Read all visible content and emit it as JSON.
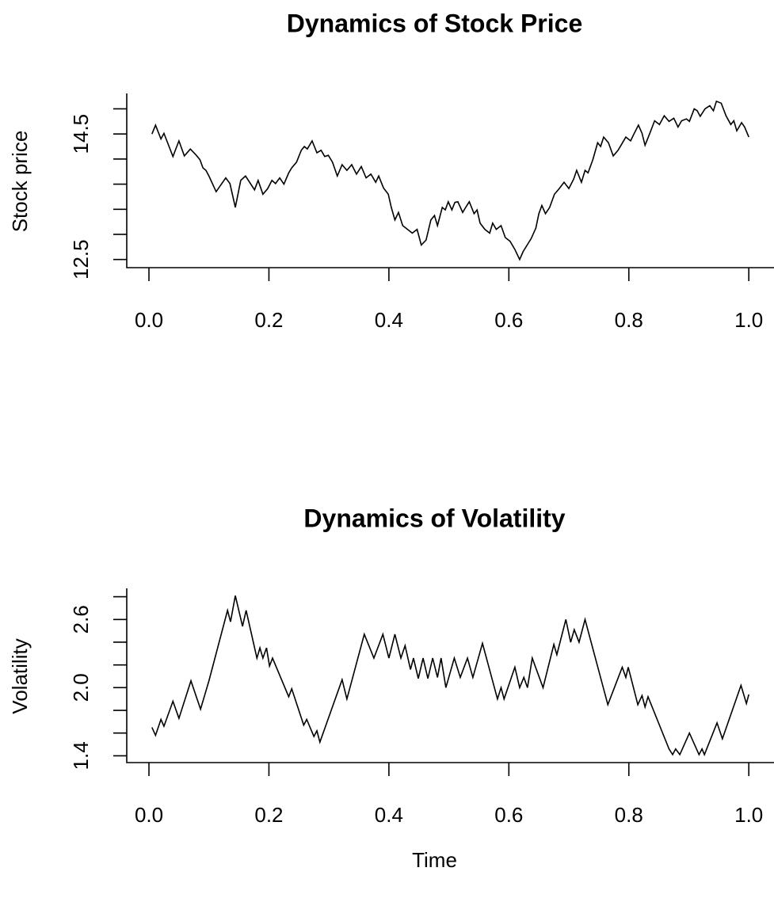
{
  "chart_data": [
    {
      "type": "line",
      "title": "Dynamics of Stock Price",
      "ylabel": "Stock price",
      "color": "#000000",
      "x": [
        0.005,
        0.011,
        0.02,
        0.025,
        0.04,
        0.05,
        0.059,
        0.069,
        0.078,
        0.085,
        0.09,
        0.095,
        0.1,
        0.112,
        0.128,
        0.135,
        0.144,
        0.153,
        0.161,
        0.176,
        0.182,
        0.19,
        0.198,
        0.205,
        0.211,
        0.218,
        0.225,
        0.233,
        0.238,
        0.246,
        0.254,
        0.259,
        0.264,
        0.272,
        0.28,
        0.287,
        0.293,
        0.299,
        0.306,
        0.314,
        0.322,
        0.33,
        0.338,
        0.346,
        0.354,
        0.362,
        0.37,
        0.378,
        0.383,
        0.391,
        0.399,
        0.404,
        0.41,
        0.416,
        0.423,
        0.431,
        0.439,
        0.447,
        0.454,
        0.462,
        0.47,
        0.476,
        0.481,
        0.489,
        0.494,
        0.499,
        0.505,
        0.51,
        0.515,
        0.523,
        0.528,
        0.534,
        0.542,
        0.547,
        0.552,
        0.56,
        0.568,
        0.573,
        0.579,
        0.587,
        0.594,
        0.602,
        0.61,
        0.618,
        0.624,
        0.637,
        0.645,
        0.65,
        0.655,
        0.661,
        0.668,
        0.676,
        0.684,
        0.692,
        0.7,
        0.708,
        0.713,
        0.721,
        0.727,
        0.732,
        0.74,
        0.748,
        0.753,
        0.758,
        0.766,
        0.774,
        0.782,
        0.787,
        0.795,
        0.803,
        0.808,
        0.816,
        0.822,
        0.827,
        0.835,
        0.843,
        0.851,
        0.859,
        0.867,
        0.875,
        0.882,
        0.888,
        0.896,
        0.901,
        0.909,
        0.914,
        0.919,
        0.927,
        0.935,
        0.941,
        0.946,
        0.954,
        0.962,
        0.97,
        0.975,
        0.98,
        0.988,
        0.993,
        1.0
      ],
      "values": [
        14.5,
        14.64,
        14.42,
        14.51,
        14.14,
        14.39,
        14.15,
        14.26,
        14.17,
        14.09,
        13.96,
        13.92,
        13.83,
        13.58,
        13.8,
        13.71,
        13.33,
        13.76,
        13.83,
        13.61,
        13.76,
        13.54,
        13.63,
        13.76,
        13.71,
        13.8,
        13.7,
        13.88,
        13.96,
        14.05,
        14.24,
        14.3,
        14.26,
        14.39,
        14.2,
        14.24,
        14.14,
        14.16,
        14.05,
        13.83,
        14.01,
        13.92,
        14.01,
        13.86,
        13.98,
        13.8,
        13.86,
        13.73,
        13.83,
        13.64,
        13.54,
        13.33,
        13.13,
        13.25,
        13.04,
        12.98,
        12.92,
        12.98,
        12.73,
        12.81,
        13.13,
        13.2,
        13.04,
        13.33,
        13.29,
        13.42,
        13.29,
        13.41,
        13.42,
        13.25,
        13.33,
        13.42,
        13.23,
        13.29,
        13.08,
        12.98,
        12.92,
        13.08,
        12.98,
        13.04,
        12.85,
        12.79,
        12.66,
        12.5,
        12.63,
        12.83,
        13.0,
        13.23,
        13.36,
        13.23,
        13.33,
        13.54,
        13.63,
        13.73,
        13.63,
        13.78,
        13.92,
        13.73,
        13.92,
        13.88,
        14.09,
        14.36,
        14.3,
        14.45,
        14.36,
        14.15,
        14.24,
        14.32,
        14.45,
        14.39,
        14.49,
        14.64,
        14.51,
        14.32,
        14.51,
        14.71,
        14.65,
        14.79,
        14.7,
        14.75,
        14.61,
        14.71,
        14.74,
        14.7,
        14.9,
        14.87,
        14.78,
        14.9,
        14.95,
        14.87,
        15.02,
        14.99,
        14.79,
        14.65,
        14.71,
        14.55,
        14.68,
        14.61,
        14.45
      ],
      "xlim": [
        -0.037,
        1.042
      ],
      "ylim": [
        12.37,
        15.12
      ],
      "xticks": [
        {
          "value": 0,
          "label": "0.0"
        },
        0.2,
        0.4,
        0.6,
        0.8,
        {
          "value": 1,
          "label": "1.0"
        }
      ],
      "yticks": [
        12.5,
        14.5
      ],
      "yticks_minor": [
        12.9,
        13.3,
        13.7,
        14.1,
        14.9
      ]
    },
    {
      "type": "line",
      "title": "Dynamics of Volatility",
      "ylabel": "Volatility",
      "xlabel": "Time",
      "color": "#000000",
      "x": [
        0.005,
        0.011,
        0.02,
        0.025,
        0.04,
        0.05,
        0.07,
        0.086,
        0.1,
        0.131,
        0.136,
        0.144,
        0.156,
        0.162,
        0.18,
        0.185,
        0.19,
        0.196,
        0.201,
        0.206,
        0.233,
        0.238,
        0.258,
        0.263,
        0.275,
        0.28,
        0.285,
        0.322,
        0.33,
        0.359,
        0.375,
        0.39,
        0.4,
        0.41,
        0.42,
        0.427,
        0.436,
        0.441,
        0.449,
        0.457,
        0.465,
        0.473,
        0.481,
        0.487,
        0.495,
        0.509,
        0.519,
        0.531,
        0.54,
        0.556,
        0.581,
        0.587,
        0.592,
        0.61,
        0.618,
        0.625,
        0.631,
        0.639,
        0.657,
        0.675,
        0.68,
        0.695,
        0.703,
        0.709,
        0.717,
        0.727,
        0.765,
        0.789,
        0.795,
        0.799,
        0.815,
        0.822,
        0.827,
        0.832,
        0.867,
        0.873,
        0.878,
        0.885,
        0.901,
        0.917,
        0.922,
        0.926,
        0.947,
        0.956,
        0.987,
        0.996,
        1.0
      ],
      "values": [
        1.65,
        1.58,
        1.72,
        1.66,
        1.88,
        1.73,
        2.06,
        1.81,
        2.06,
        2.68,
        2.58,
        2.81,
        2.54,
        2.68,
        2.26,
        2.35,
        2.26,
        2.35,
        2.19,
        2.26,
        1.92,
        1.99,
        1.67,
        1.72,
        1.57,
        1.62,
        1.52,
        2.07,
        1.9,
        2.47,
        2.26,
        2.47,
        2.26,
        2.47,
        2.26,
        2.37,
        2.16,
        2.26,
        2.08,
        2.26,
        2.08,
        2.26,
        2.09,
        2.26,
        2.0,
        2.26,
        2.09,
        2.26,
        2.09,
        2.39,
        1.9,
        2.0,
        1.9,
        2.18,
        2.0,
        2.09,
        2.0,
        2.26,
        2.0,
        2.38,
        2.29,
        2.6,
        2.4,
        2.51,
        2.4,
        2.6,
        1.85,
        2.18,
        2.09,
        2.18,
        1.85,
        1.93,
        1.83,
        1.92,
        1.46,
        1.41,
        1.46,
        1.41,
        1.6,
        1.41,
        1.46,
        1.41,
        1.69,
        1.55,
        2.02,
        1.86,
        1.94
      ],
      "xlim": [
        -0.037,
        1.042
      ],
      "ylim": [
        1.34,
        2.86
      ],
      "xticks": [
        {
          "value": 0,
          "label": "0.0"
        },
        0.2,
        0.4,
        0.6,
        0.8,
        {
          "value": 1,
          "label": "1.0"
        }
      ],
      "yticks": [
        1.4,
        {
          "value": 2,
          "label": "2.0"
        },
        2.6
      ],
      "yticks_minor": [
        1.6,
        1.8,
        2.2,
        2.4,
        2.8
      ]
    }
  ]
}
